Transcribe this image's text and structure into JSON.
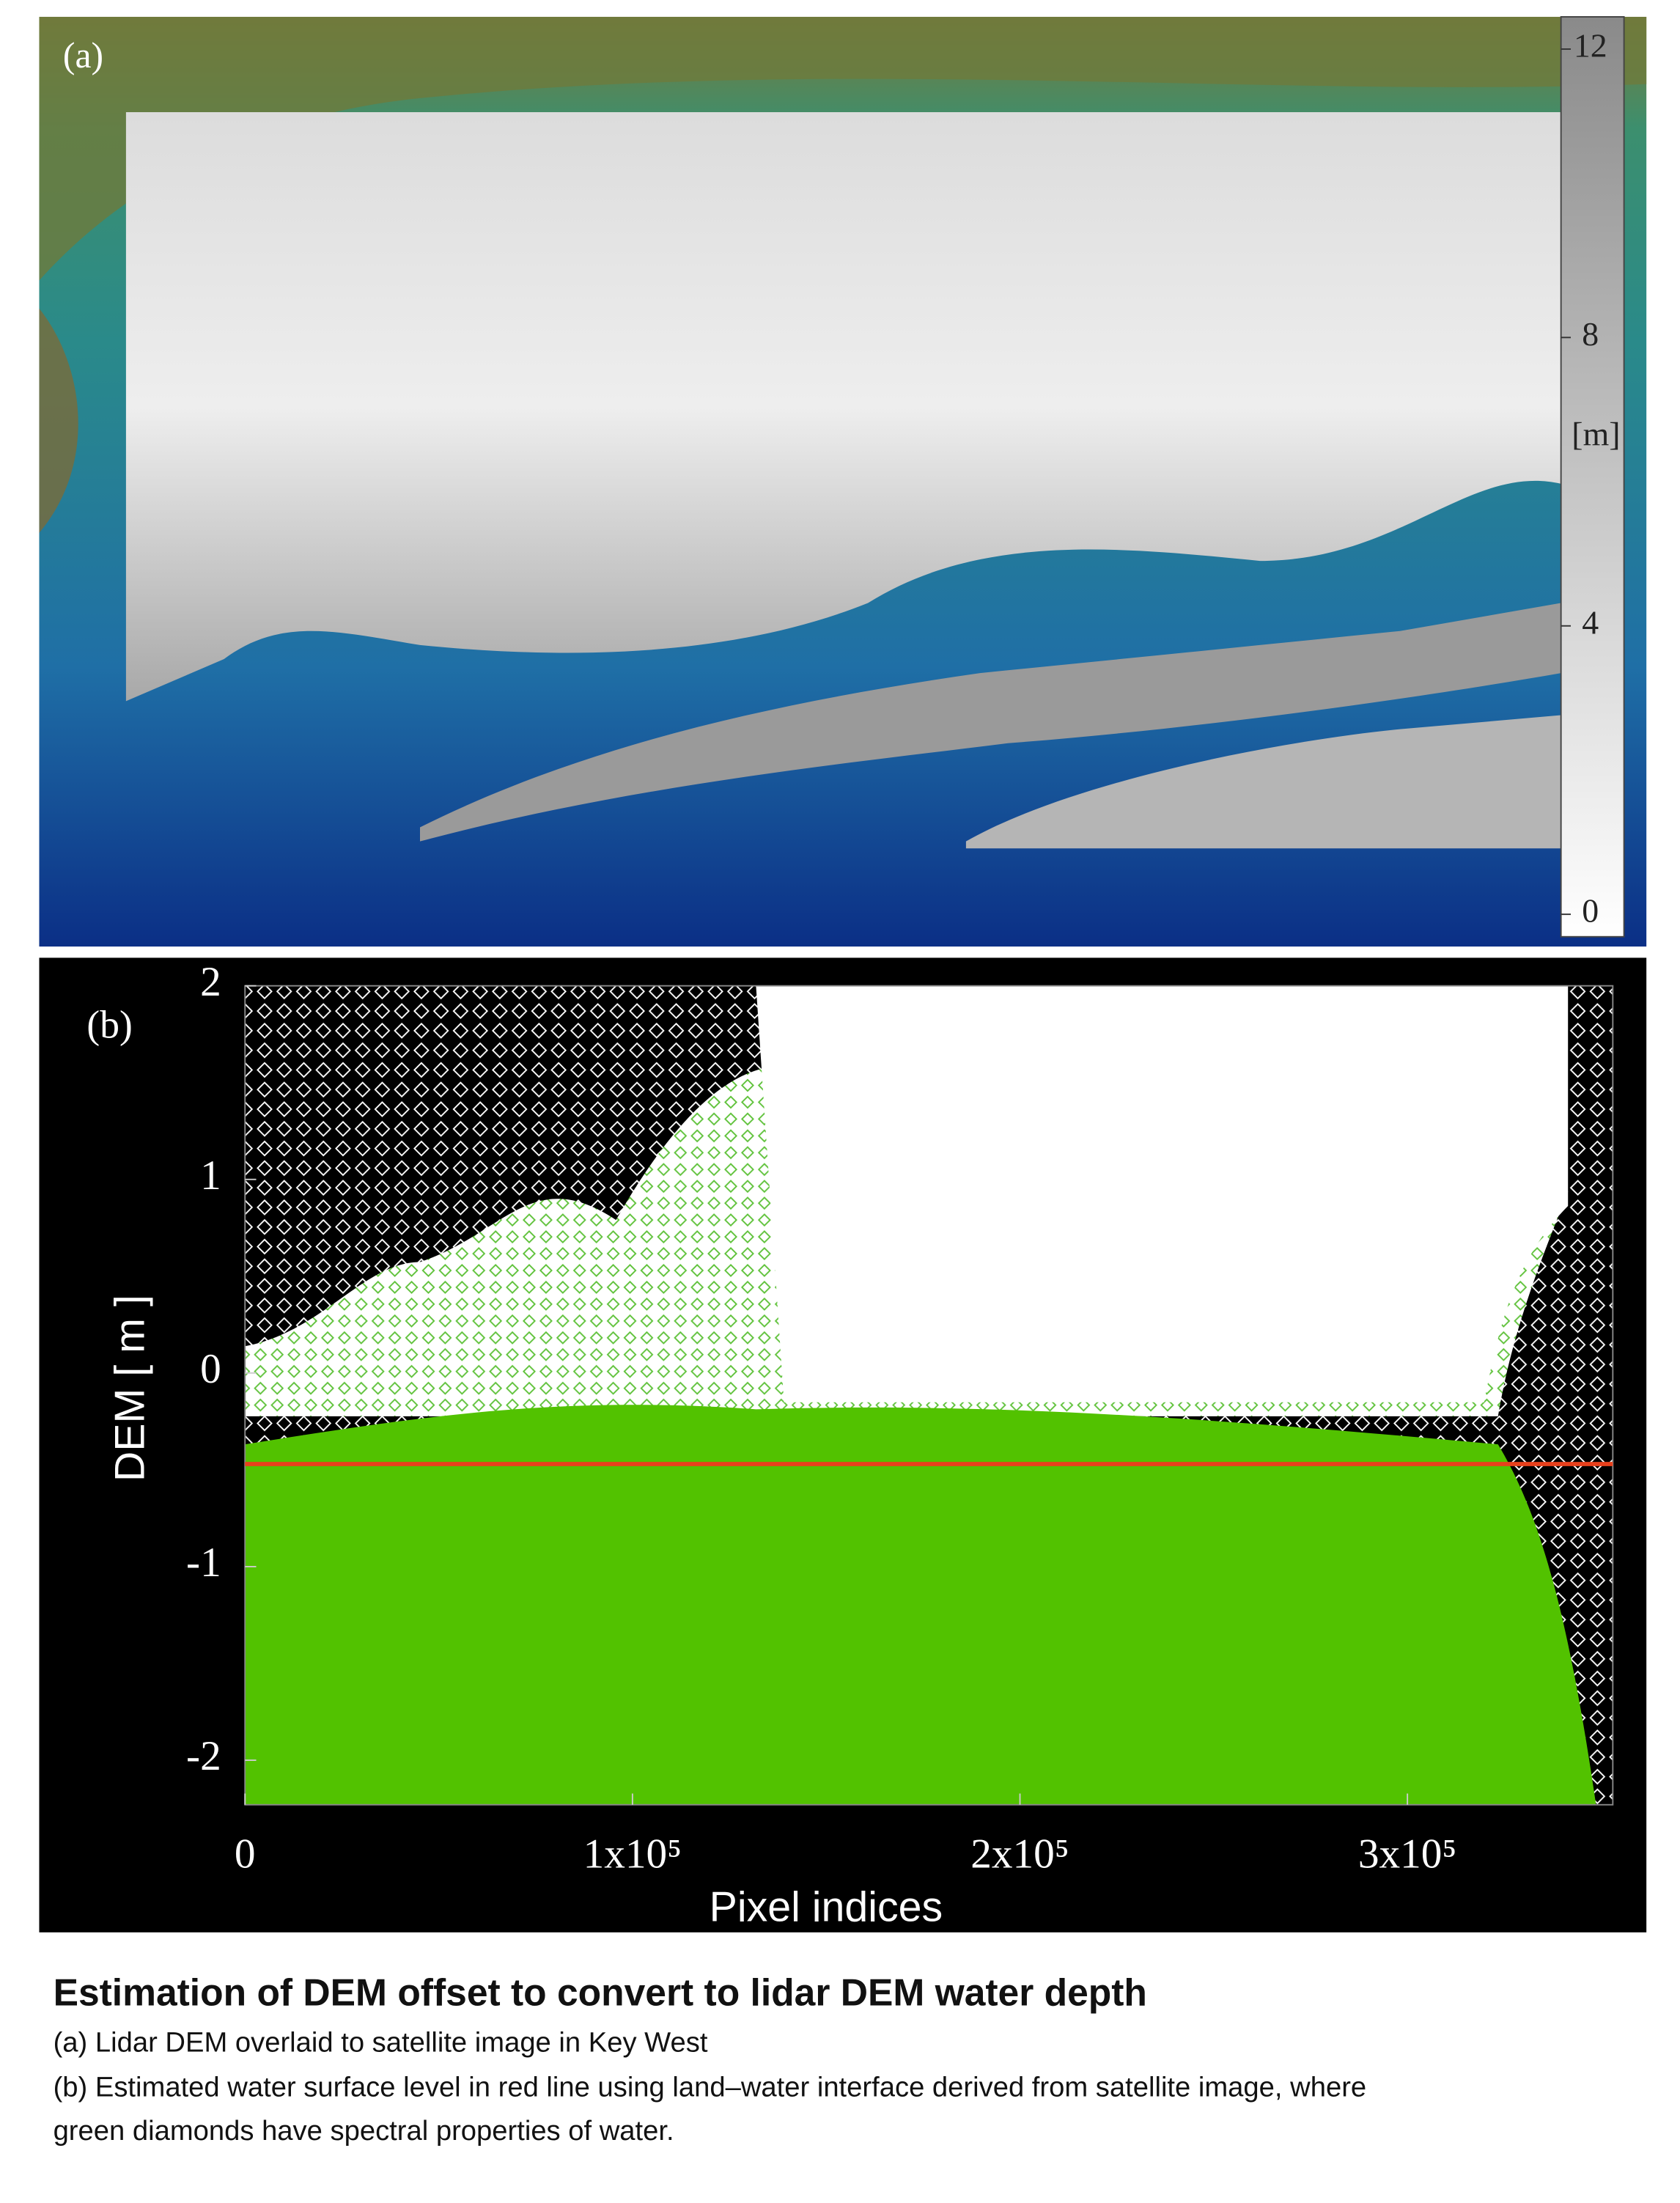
{
  "chart_data": [
    {
      "type": "image",
      "panel_label": "(a)",
      "colorbar": {
        "label": "[m]",
        "ylim": [
          0,
          12
        ],
        "yticks": [
          0,
          4,
          8,
          12
        ]
      }
    },
    {
      "type": "scatter",
      "panel_label": "(b)",
      "y_label": "DEM [ m ]",
      "x_label": "Pixel indices",
      "xlim": [
        0,
        353000
      ],
      "ylim": [
        -2.23,
        2
      ],
      "xticks": [
        0,
        {
          "value": 100000,
          "label": "1x10⁵"
        },
        {
          "value": 200000,
          "label": "2x10⁵"
        },
        {
          "value": 300000,
          "label": "3x10⁵"
        }
      ],
      "yticks": [
        -2,
        -1,
        0,
        1,
        2
      ],
      "reference_line": {
        "value": -0.47,
        "color": "#e8401c"
      }
    }
  ],
  "caption": {
    "title": "Estimation of DEM offset to convert to lidar DEM water depth",
    "lines": [
      "(a) Lidar DEM overlaid to satellite image in Key West",
      "(b) Estimated water surface level in red line using land–water interface derived from satellite image, where",
      "green diamonds have spectral properties of water."
    ]
  }
}
